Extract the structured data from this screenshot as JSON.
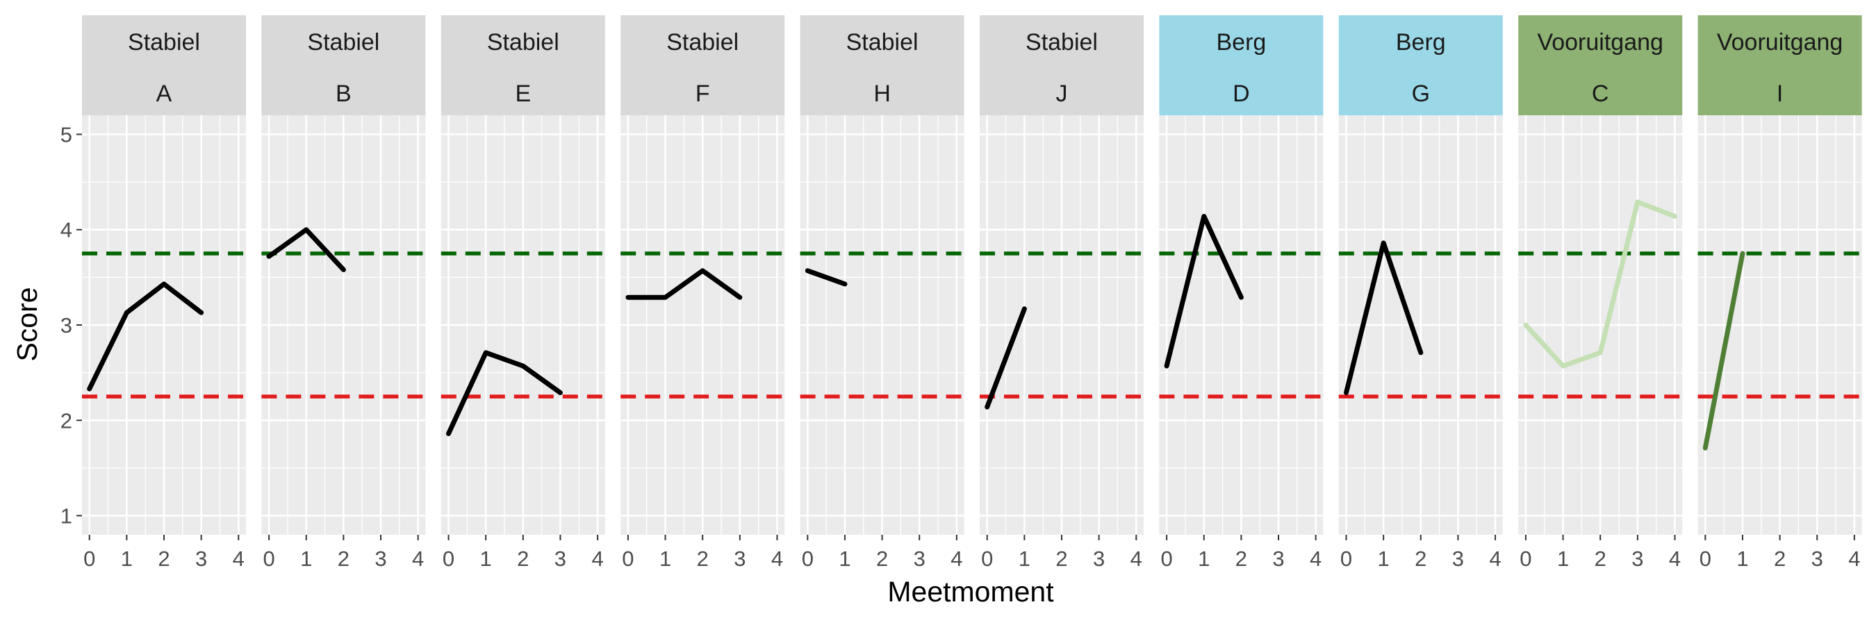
{
  "chart_data": {
    "type": "line",
    "title": "",
    "xlabel": "Meetmoment",
    "ylabel": "Score",
    "xlim": [
      -0.2,
      4.2
    ],
    "ylim": [
      0.8,
      5.2
    ],
    "x_ticks": [
      0,
      1,
      2,
      3,
      4
    ],
    "y_ticks": [
      1,
      2,
      3,
      4,
      5
    ],
    "reference_lines": [
      {
        "name": "upper",
        "y": 3.75,
        "color": "#006400",
        "style": "dashed"
      },
      {
        "name": "lower",
        "y": 2.25,
        "color": "#e31a1c",
        "style": "dashed"
      }
    ],
    "panels": [
      {
        "group": "Stabiel",
        "id": "A",
        "strip_color": "#d9d9d9",
        "line_color": "#000000",
        "x": [
          0,
          1,
          2,
          3
        ],
        "y": [
          2.33,
          3.13,
          3.43,
          3.13
        ]
      },
      {
        "group": "Stabiel",
        "id": "B",
        "strip_color": "#d9d9d9",
        "line_color": "#000000",
        "x": [
          0,
          1,
          2
        ],
        "y": [
          3.72,
          4.0,
          3.58
        ]
      },
      {
        "group": "Stabiel",
        "id": "E",
        "strip_color": "#d9d9d9",
        "line_color": "#000000",
        "x": [
          0,
          1,
          2,
          3
        ],
        "y": [
          1.86,
          2.71,
          2.57,
          2.29
        ]
      },
      {
        "group": "Stabiel",
        "id": "F",
        "strip_color": "#d9d9d9",
        "line_color": "#000000",
        "x": [
          0,
          1,
          2,
          3
        ],
        "y": [
          3.29,
          3.29,
          3.57,
          3.29
        ]
      },
      {
        "group": "Stabiel",
        "id": "H",
        "strip_color": "#d9d9d9",
        "line_color": "#000000",
        "x": [
          0,
          1
        ],
        "y": [
          3.57,
          3.43
        ]
      },
      {
        "group": "Stabiel",
        "id": "J",
        "strip_color": "#d9d9d9",
        "line_color": "#000000",
        "x": [
          0,
          1
        ],
        "y": [
          2.14,
          3.17
        ]
      },
      {
        "group": "Berg",
        "id": "D",
        "strip_color": "#9ad8e8",
        "line_color": "#000000",
        "x": [
          0,
          1,
          2
        ],
        "y": [
          2.57,
          4.14,
          3.29
        ]
      },
      {
        "group": "Berg",
        "id": "G",
        "strip_color": "#9ad8e8",
        "line_color": "#000000",
        "x": [
          0,
          1,
          2
        ],
        "y": [
          2.29,
          3.86,
          2.71
        ]
      },
      {
        "group": "Vooruitgang",
        "id": "C",
        "strip_color": "#8db273",
        "line_color": "#c5e0b4",
        "x": [
          0,
          1,
          2,
          3,
          4
        ],
        "y": [
          3.0,
          2.57,
          2.71,
          4.29,
          4.14
        ]
      },
      {
        "group": "Vooruitgang",
        "id": "I",
        "strip_color": "#8db273",
        "line_color": "#4f7f35",
        "x": [
          0,
          1
        ],
        "y": [
          1.71,
          3.75
        ]
      }
    ]
  }
}
